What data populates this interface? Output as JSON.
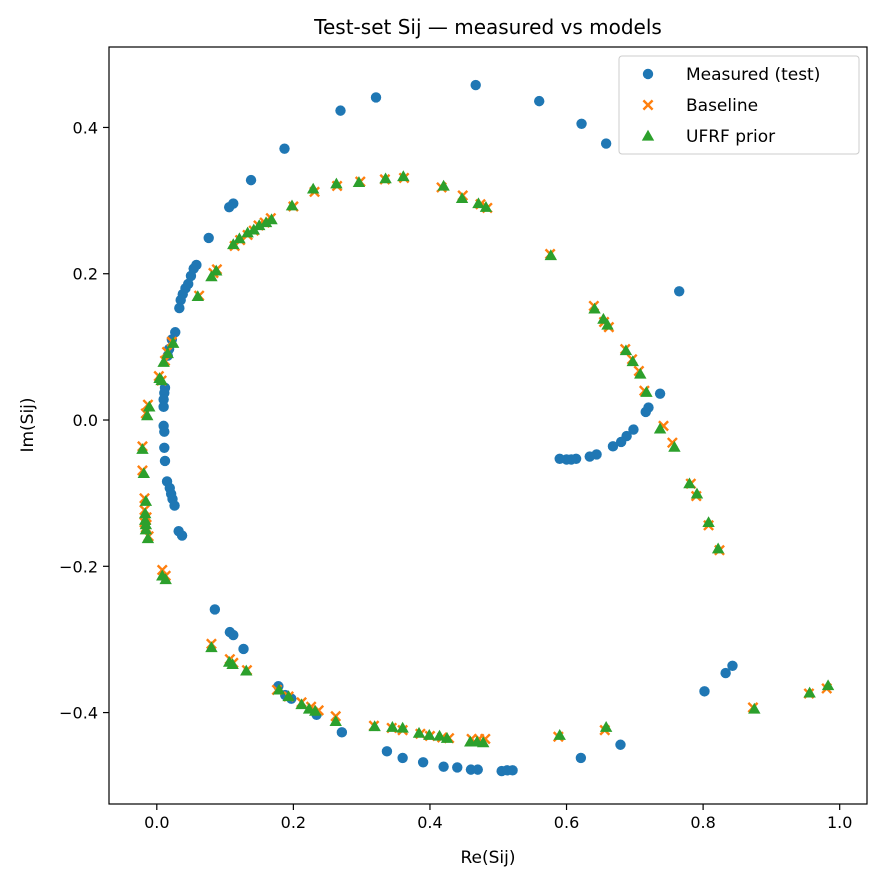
{
  "chart_data": {
    "type": "scatter",
    "title": "Test-set Sij — measured vs models",
    "xlabel": "Re(Sij)",
    "ylabel": "Im(Sij)",
    "xlim": [
      -0.07,
      1.04
    ],
    "ylim": [
      -0.525,
      0.51
    ],
    "x_ticks": [
      "0.0",
      "0.2",
      "0.4",
      "0.6",
      "0.8",
      "1.0"
    ],
    "y_ticks": [
      "−0.4",
      "−0.2",
      "0.0",
      "0.2",
      "0.4"
    ],
    "x_tick_values": [
      0.0,
      0.2,
      0.4,
      0.6,
      0.8,
      1.0
    ],
    "y_tick_values": [
      -0.4,
      -0.2,
      0.0,
      0.2,
      0.4
    ],
    "grid": false,
    "legend_position": "top-right",
    "series": [
      {
        "name": "Measured (test)",
        "marker": "circle",
        "color": "#1f77b4",
        "points": [
          [
            0.467,
            0.458
          ],
          [
            0.321,
            0.441
          ],
          [
            0.269,
            0.423
          ],
          [
            0.56,
            0.436
          ],
          [
            0.622,
            0.405
          ],
          [
            0.658,
            0.378
          ],
          [
            0.187,
            0.371
          ],
          [
            0.138,
            0.328
          ],
          [
            0.112,
            0.296
          ],
          [
            0.106,
            0.291
          ],
          [
            0.076,
            0.249
          ],
          [
            0.058,
            0.212
          ],
          [
            0.054,
            0.207
          ],
          [
            0.05,
            0.197
          ],
          [
            0.046,
            0.186
          ],
          [
            0.042,
            0.18
          ],
          [
            0.038,
            0.172
          ],
          [
            0.035,
            0.164
          ],
          [
            0.033,
            0.153
          ],
          [
            0.765,
            0.176
          ],
          [
            0.027,
            0.12
          ],
          [
            0.022,
            0.11
          ],
          [
            0.018,
            0.097
          ],
          [
            0.016,
            0.088
          ],
          [
            0.012,
            0.044
          ],
          [
            0.011,
            0.037
          ],
          [
            0.01,
            0.028
          ],
          [
            0.01,
            0.018
          ],
          [
            0.737,
            0.036
          ],
          [
            0.72,
            0.017
          ],
          [
            0.716,
            0.011
          ],
          [
            0.698,
            -0.013
          ],
          [
            0.688,
            -0.022
          ],
          [
            0.68,
            -0.03
          ],
          [
            0.668,
            -0.036
          ],
          [
            0.644,
            -0.047
          ],
          [
            0.634,
            -0.05
          ],
          [
            0.614,
            -0.053
          ],
          [
            0.607,
            -0.054
          ],
          [
            0.6,
            -0.054
          ],
          [
            0.59,
            -0.053
          ],
          [
            0.01,
            -0.008
          ],
          [
            0.011,
            -0.016
          ],
          [
            0.011,
            -0.038
          ],
          [
            0.012,
            -0.056
          ],
          [
            0.015,
            -0.084
          ],
          [
            0.019,
            -0.093
          ],
          [
            0.021,
            -0.101
          ],
          [
            0.023,
            -0.108
          ],
          [
            0.026,
            -0.117
          ],
          [
            0.032,
            -0.152
          ],
          [
            0.037,
            -0.158
          ],
          [
            0.085,
            -0.259
          ],
          [
            0.107,
            -0.29
          ],
          [
            0.112,
            -0.294
          ],
          [
            0.127,
            -0.313
          ],
          [
            0.843,
            -0.336
          ],
          [
            0.833,
            -0.346
          ],
          [
            0.802,
            -0.371
          ],
          [
            0.178,
            -0.364
          ],
          [
            0.188,
            -0.376
          ],
          [
            0.197,
            -0.381
          ],
          [
            0.234,
            -0.403
          ],
          [
            0.271,
            -0.427
          ],
          [
            0.337,
            -0.453
          ],
          [
            0.36,
            -0.462
          ],
          [
            0.39,
            -0.468
          ],
          [
            0.42,
            -0.474
          ],
          [
            0.44,
            -0.475
          ],
          [
            0.46,
            -0.478
          ],
          [
            0.47,
            -0.478
          ],
          [
            0.505,
            -0.48
          ],
          [
            0.513,
            -0.479
          ],
          [
            0.521,
            -0.479
          ],
          [
            0.621,
            -0.462
          ],
          [
            0.679,
            -0.444
          ]
        ]
      },
      {
        "name": "Baseline",
        "marker": "x",
        "color": "#ff7f0e",
        "points": [
          [
            0.362,
            0.331
          ],
          [
            0.334,
            0.329
          ],
          [
            0.298,
            0.326
          ],
          [
            0.264,
            0.32
          ],
          [
            0.231,
            0.312
          ],
          [
            0.417,
            0.318
          ],
          [
            0.448,
            0.307
          ],
          [
            0.474,
            0.295
          ],
          [
            0.484,
            0.29
          ],
          [
            0.2,
            0.292
          ],
          [
            0.167,
            0.276
          ],
          [
            0.158,
            0.27
          ],
          [
            0.149,
            0.266
          ],
          [
            0.142,
            0.259
          ],
          [
            0.133,
            0.253
          ],
          [
            0.122,
            0.246
          ],
          [
            0.114,
            0.238
          ],
          [
            0.088,
            0.206
          ],
          [
            0.083,
            0.201
          ],
          [
            0.062,
            0.17
          ],
          [
            0.576,
            0.227
          ],
          [
            0.64,
            0.156
          ],
          [
            0.655,
            0.134
          ],
          [
            0.662,
            0.127
          ],
          [
            0.686,
            0.097
          ],
          [
            0.696,
            0.083
          ],
          [
            0.706,
            0.067
          ],
          [
            0.022,
            0.107
          ],
          [
            0.015,
            0.093
          ],
          [
            0.012,
            0.081
          ],
          [
            0.003,
            0.06
          ],
          [
            0.007,
            0.054
          ],
          [
            0.714,
            0.04
          ],
          [
            0.742,
            -0.008
          ],
          [
            0.755,
            -0.031
          ],
          [
            0.782,
            -0.087
          ],
          [
            0.79,
            -0.104
          ],
          [
            0.808,
            -0.144
          ],
          [
            0.824,
            -0.178
          ],
          [
            -0.013,
            0.021
          ],
          [
            -0.016,
            0.009
          ],
          [
            -0.021,
            -0.036
          ],
          [
            -0.021,
            -0.069
          ],
          [
            -0.018,
            -0.107
          ],
          [
            -0.018,
            -0.123
          ],
          [
            -0.015,
            -0.133
          ],
          [
            -0.018,
            -0.14
          ],
          [
            -0.016,
            -0.147
          ],
          [
            -0.012,
            -0.159
          ],
          [
            0.008,
            -0.205
          ],
          [
            0.013,
            -0.213
          ],
          [
            0.08,
            -0.306
          ],
          [
            0.107,
            -0.327
          ],
          [
            0.112,
            -0.332
          ],
          [
            0.132,
            -0.342
          ],
          [
            0.873,
            -0.393
          ],
          [
            0.955,
            -0.374
          ],
          [
            0.981,
            -0.367
          ],
          [
            0.176,
            -0.369
          ],
          [
            0.193,
            -0.378
          ],
          [
            0.212,
            -0.386
          ],
          [
            0.226,
            -0.392
          ],
          [
            0.237,
            -0.397
          ],
          [
            0.262,
            -0.405
          ],
          [
            0.318,
            -0.418
          ],
          [
            0.344,
            -0.421
          ],
          [
            0.36,
            -0.424
          ],
          [
            0.386,
            -0.429
          ],
          [
            0.4,
            -0.432
          ],
          [
            0.418,
            -0.434
          ],
          [
            0.428,
            -0.435
          ],
          [
            0.461,
            -0.436
          ],
          [
            0.472,
            -0.436
          ],
          [
            0.481,
            -0.436
          ],
          [
            0.588,
            -0.433
          ],
          [
            0.656,
            -0.424
          ]
        ]
      },
      {
        "name": "UFRF prior",
        "marker": "triangle",
        "color": "#2ca02c",
        "points": [
          [
            0.361,
            0.333
          ],
          [
            0.335,
            0.33
          ],
          [
            0.296,
            0.325
          ],
          [
            0.263,
            0.323
          ],
          [
            0.229,
            0.316
          ],
          [
            0.42,
            0.32
          ],
          [
            0.447,
            0.303
          ],
          [
            0.471,
            0.296
          ],
          [
            0.482,
            0.291
          ],
          [
            0.198,
            0.293
          ],
          [
            0.168,
            0.274
          ],
          [
            0.16,
            0.27
          ],
          [
            0.15,
            0.266
          ],
          [
            0.142,
            0.26
          ],
          [
            0.133,
            0.256
          ],
          [
            0.121,
            0.248
          ],
          [
            0.112,
            0.24
          ],
          [
            0.087,
            0.204
          ],
          [
            0.08,
            0.196
          ],
          [
            0.06,
            0.169
          ],
          [
            0.577,
            0.225
          ],
          [
            0.641,
            0.152
          ],
          [
            0.654,
            0.138
          ],
          [
            0.66,
            0.13
          ],
          [
            0.687,
            0.095
          ],
          [
            0.697,
            0.08
          ],
          [
            0.708,
            0.063
          ],
          [
            0.024,
            0.105
          ],
          [
            0.016,
            0.091
          ],
          [
            0.01,
            0.079
          ],
          [
            0.004,
            0.057
          ],
          [
            0.007,
            0.054
          ],
          [
            0.717,
            0.038
          ],
          [
            0.737,
            -0.012
          ],
          [
            0.758,
            -0.037
          ],
          [
            0.78,
            -0.087
          ],
          [
            0.791,
            -0.101
          ],
          [
            0.808,
            -0.14
          ],
          [
            0.822,
            -0.176
          ],
          [
            -0.011,
            0.018
          ],
          [
            -0.014,
            0.006
          ],
          [
            -0.021,
            -0.04
          ],
          [
            -0.019,
            -0.073
          ],
          [
            -0.016,
            -0.111
          ],
          [
            -0.017,
            -0.128
          ],
          [
            -0.017,
            -0.137
          ],
          [
            -0.016,
            -0.143
          ],
          [
            -0.016,
            -0.15
          ],
          [
            -0.013,
            -0.162
          ],
          [
            0.008,
            -0.213
          ],
          [
            0.013,
            -0.218
          ],
          [
            0.08,
            -0.311
          ],
          [
            0.106,
            -0.331
          ],
          [
            0.111,
            -0.334
          ],
          [
            0.131,
            -0.343
          ],
          [
            0.875,
            -0.395
          ],
          [
            0.956,
            -0.373
          ],
          [
            0.983,
            -0.363
          ],
          [
            0.179,
            -0.369
          ],
          [
            0.193,
            -0.378
          ],
          [
            0.212,
            -0.389
          ],
          [
            0.223,
            -0.395
          ],
          [
            0.232,
            -0.398
          ],
          [
            0.262,
            -0.412
          ],
          [
            0.319,
            -0.419
          ],
          [
            0.345,
            -0.42
          ],
          [
            0.36,
            -0.421
          ],
          [
            0.384,
            -0.428
          ],
          [
            0.399,
            -0.431
          ],
          [
            0.414,
            -0.432
          ],
          [
            0.425,
            -0.435
          ],
          [
            0.459,
            -0.44
          ],
          [
            0.469,
            -0.44
          ],
          [
            0.478,
            -0.441
          ],
          [
            0.59,
            -0.431
          ],
          [
            0.658,
            -0.42
          ]
        ]
      }
    ]
  }
}
